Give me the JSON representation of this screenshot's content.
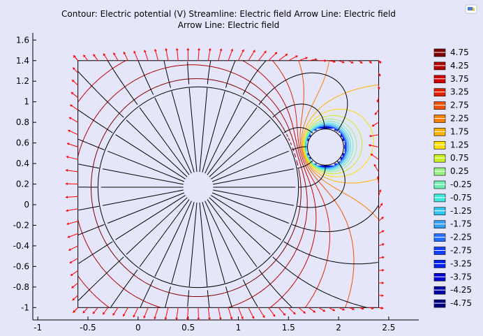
{
  "chart_data": {
    "type": "contour",
    "title_lines": [
      "Contour: Electric potential (V)  Streamline: Electric field  Arrow Line: Electric field",
      "Arrow Line: Electric field"
    ],
    "x_ticks": [
      -1,
      -0.5,
      0,
      0.5,
      1,
      1.5,
      2,
      2.5
    ],
    "x_tick_labels": [
      "-1",
      "-0.5",
      "0",
      "0.5",
      "1",
      "1.5",
      "2",
      "2.5"
    ],
    "y_ticks": [
      -1,
      -0.8,
      -0.6,
      -0.4,
      -0.2,
      0,
      0.2,
      0.4,
      0.6,
      0.8,
      1,
      1.2,
      1.4,
      1.6
    ],
    "y_tick_labels": [
      "-1",
      "-0.8",
      "-0.6",
      "-0.4",
      "-0.2",
      "0",
      "0.2",
      "0.4",
      "0.6",
      "0.8",
      "1",
      "1.2",
      "1.4",
      "1.6"
    ],
    "xlim": [
      -1.05,
      2.8
    ],
    "ylim": [
      -1.12,
      1.67
    ],
    "domain": {
      "x": [
        -0.6,
        2.4
      ],
      "y": [
        -1,
        1.4
      ]
    },
    "large_conductor": {
      "cx": 0.6,
      "cy": 0.17,
      "r": 1.0,
      "potential": 5
    },
    "small_conductor": {
      "cx": 1.87,
      "cy": 0.56,
      "r": 0.18,
      "potential": -5
    },
    "contour_levels": [
      4.75,
      4.25,
      3.75,
      3.25,
      2.75,
      2.25,
      1.75,
      1.25,
      0.75,
      0.25,
      -0.25,
      -0.75,
      -1.25,
      -1.75,
      -2.25,
      -2.75,
      -3.25,
      -3.75,
      -4.25,
      -4.75
    ],
    "legend_labels": [
      "4.75",
      "4.25",
      "3.75",
      "3.25",
      "2.75",
      "2.25",
      "1.75",
      "1.25",
      "0.75",
      "0.25",
      "-0.25",
      "-0.75",
      "-1.25",
      "-1.75",
      "-2.25",
      "-2.75",
      "-3.25",
      "-3.75",
      "-4.25",
      "-4.75"
    ],
    "legend_colors": [
      "#7f0000",
      "#b00000",
      "#cc0000",
      "#e02000",
      "#f05000",
      "#f88000",
      "#ffb000",
      "#ffe000",
      "#c8f020",
      "#98f080",
      "#70f0b0",
      "#40e8e0",
      "#30c8f0",
      "#30a0f8",
      "#2070ff",
      "#1040ff",
      "#0020f0",
      "#0000d0",
      "#0000a8",
      "#000080"
    ],
    "streamline_color": "#000000",
    "arrow_color": "#ff0000",
    "background": "#e6e6fa",
    "grid": false
  }
}
